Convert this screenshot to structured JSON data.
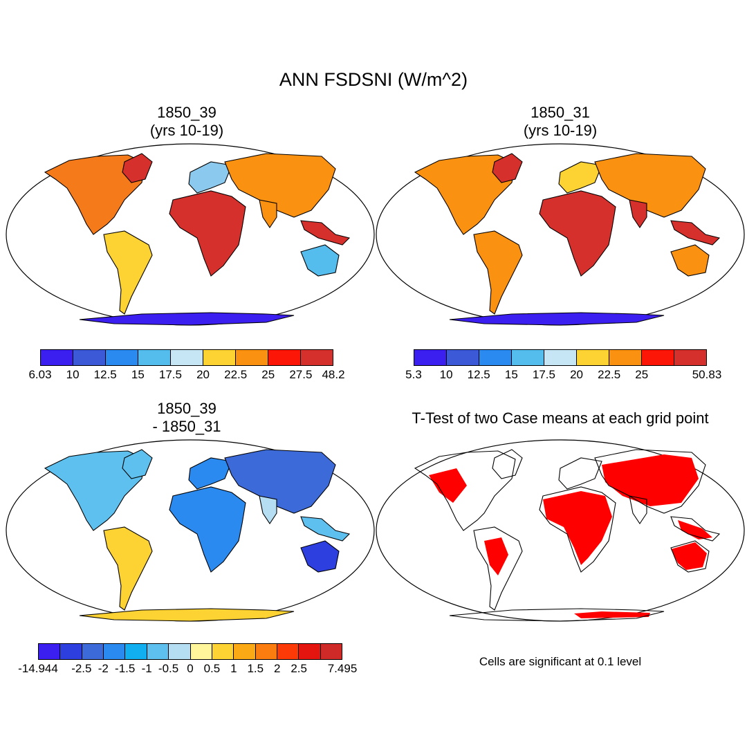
{
  "title": "ANN FSDSNI (W/m^2)",
  "panels": [
    {
      "id": "case1",
      "title_line1": "1850_39",
      "title_line2": "(yrs 10-19)",
      "colorbar": {
        "labels": [
          "6.03",
          "10",
          "12.5",
          "15",
          "17.5",
          "20",
          "22.5",
          "25",
          "27.5",
          "48.2"
        ],
        "colors": [
          "#3b1ef0",
          "#3c5ad8",
          "#2a8af0",
          "#55bcee",
          "#c7e6f5",
          "#fdd233",
          "#fb9110",
          "#fc1607",
          "#d5302c"
        ]
      }
    },
    {
      "id": "case2",
      "title_line1": "1850_31",
      "title_line2": "(yrs 10-19)",
      "colorbar": {
        "labels": [
          "5.3",
          "10",
          "12.5",
          "15",
          "17.5",
          "20",
          "22.5",
          "25",
          "",
          "50.83"
        ],
        "colors": [
          "#3b1ef0",
          "#3c5ad8",
          "#2a8af0",
          "#55bcee",
          "#c7e6f5",
          "#fdd233",
          "#fb9110",
          "#fc1607",
          "#d5302c"
        ]
      }
    },
    {
      "id": "difference",
      "title_line1": "1850_39",
      "title_line2": "- 1850_31",
      "colorbar": {
        "labels": [
          "-14.944",
          "",
          "-2.5",
          "-2",
          "-1.5",
          "-1",
          "-0.5",
          "0",
          "0.5",
          "1",
          "1.5",
          "2",
          "2.5",
          "",
          "7.495"
        ],
        "colors": [
          "#3b1ef0",
          "#2e3fe0",
          "#3c6ad8",
          "#2a8af0",
          "#11aef0",
          "#5ec0ee",
          "#b6def3",
          "#fff59a",
          "#fdd233",
          "#fbaa16",
          "#fb7d10",
          "#fc3a07",
          "#e4150f",
          "#d02a28"
        ]
      }
    },
    {
      "id": "ttest",
      "title": "T-Test of two Case means at each grid point",
      "note": "Cells are significant at 0.1 level",
      "significant_color": "#ff0000"
    }
  ]
}
